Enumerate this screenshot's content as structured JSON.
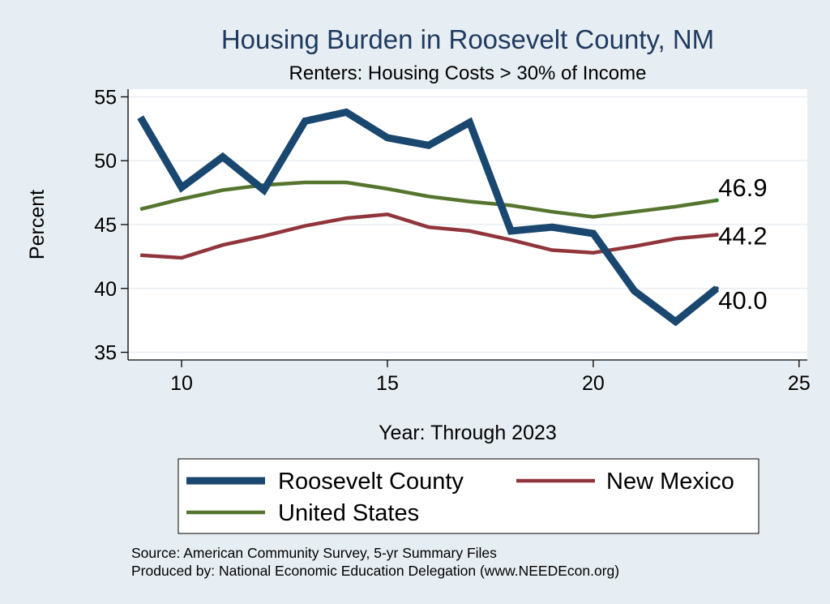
{
  "chart_data": {
    "type": "line",
    "title": "Housing Burden in Roosevelt County, NM",
    "subtitle": "Renters: Housing Costs > 30% of Income",
    "xlabel": "Year: Through 2023",
    "ylabel": "Percent",
    "xlim": [
      8.7,
      25.2
    ],
    "ylim": [
      34.4,
      55.6
    ],
    "xticks": [
      10,
      15,
      20,
      25
    ],
    "yticks": [
      35,
      40,
      45,
      50,
      55
    ],
    "grid": true,
    "x": [
      9,
      10,
      11,
      12,
      13,
      14,
      15,
      16,
      17,
      18,
      19,
      20,
      21,
      22,
      23
    ],
    "series": [
      {
        "name": "Roosevelt County",
        "color": "#1a476f",
        "values": [
          53.4,
          47.9,
          50.3,
          47.7,
          53.1,
          53.8,
          51.8,
          51.2,
          53.0,
          44.5,
          44.8,
          44.3,
          39.8,
          37.4,
          40.0
        ],
        "end_label": "40.0"
      },
      {
        "name": "New Mexico",
        "color": "#90353b",
        "values": [
          42.6,
          42.4,
          43.4,
          44.1,
          44.9,
          45.5,
          45.8,
          44.8,
          44.5,
          43.8,
          43.0,
          42.8,
          43.3,
          43.9,
          44.2
        ],
        "end_label": "44.2"
      },
      {
        "name": "United States",
        "color": "#55752f",
        "values": [
          46.2,
          47.0,
          47.7,
          48.1,
          48.3,
          48.3,
          47.8,
          47.2,
          46.8,
          46.5,
          46.0,
          45.6,
          46.0,
          46.4,
          46.9
        ],
        "end_label": "46.9"
      }
    ],
    "legend": "bottom",
    "notes": [
      "Source: American Community Survey, 5-yr Summary Files",
      "Produced by: National Economic Education Delegation (www.NEEDEcon.org)"
    ]
  }
}
